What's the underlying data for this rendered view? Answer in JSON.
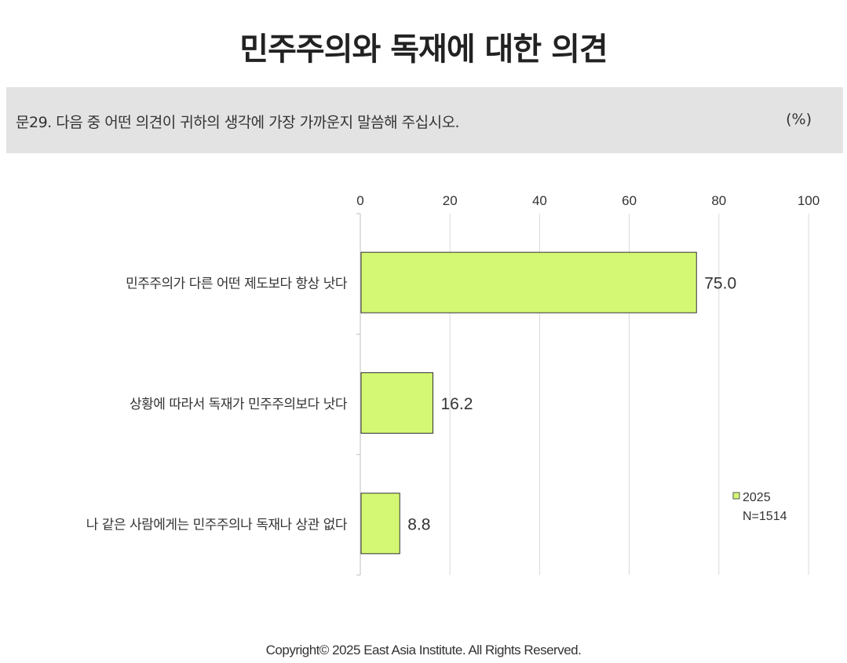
{
  "title": "민주주의와 독재에 대한 의견",
  "question": "문29. 다음 중 어떤 의견이 귀하의 생각에 가장 가까운지 말씀해 주십시오.",
  "unit": "(%)",
  "copyright": "Copyright© 2025 East Asia Institute. All Rights Reserved.",
  "chart_data": {
    "type": "bar",
    "orientation": "horizontal",
    "categories": [
      "민주주의가 다른 어떤 제도보다 항상 낫다",
      "상황에 따라서 독재가 민주주의보다 낫다",
      "나 같은 사람에게는 민주주의나 독재나 상관 없다"
    ],
    "series": [
      {
        "name": "2025",
        "values": [
          75.0,
          16.2,
          8.8
        ],
        "color": "#d4f873"
      }
    ],
    "data_labels": [
      "75.0",
      "16.2",
      "8.8"
    ],
    "xlim": [
      0,
      100
    ],
    "x_ticks": [
      0,
      20,
      40,
      60,
      80,
      100
    ],
    "x_axis_position": "top",
    "grid": true,
    "legend": {
      "placement": "right",
      "entries": [
        "2025"
      ],
      "note": "N=1514"
    }
  }
}
